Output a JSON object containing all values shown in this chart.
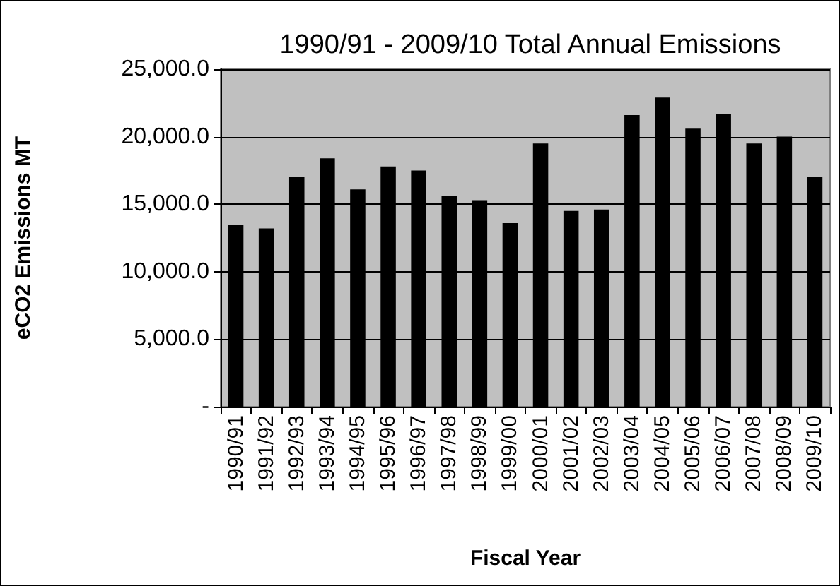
{
  "chart_data": {
    "type": "bar",
    "title": "1990/91 - 2009/10 Total Annual Emissions",
    "xlabel": "Fiscal Year",
    "ylabel": "eCO2 Emissions MT",
    "categories": [
      "1990/91",
      "1991/92",
      "1992/93",
      "1993/94",
      "1994/95",
      "1995/96",
      "1996/97",
      "1997/98",
      "1998/99",
      "1999/00",
      "2000/01",
      "2001/02",
      "2002/03",
      "2003/04",
      "2004/05",
      "2005/06",
      "2006/07",
      "2007/08",
      "2008/09",
      "2009/10"
    ],
    "values": [
      13500,
      13200,
      17000,
      18400,
      16100,
      17800,
      17500,
      15600,
      15300,
      13600,
      19500,
      14500,
      14600,
      21600,
      22900,
      20600,
      21700,
      19500,
      20000,
      17000
    ],
    "color": "#000000",
    "ylim": [
      0,
      25000
    ],
    "yticks": [
      {
        "value": 0,
        "label": "-"
      },
      {
        "value": 5000,
        "label": "5,000.0"
      },
      {
        "value": 10000,
        "label": "10,000.0"
      },
      {
        "value": 15000,
        "label": "15,000.0"
      },
      {
        "value": 20000,
        "label": "20,000.0"
      },
      {
        "value": 25000,
        "label": "25,000.0"
      }
    ],
    "grid": "y"
  }
}
